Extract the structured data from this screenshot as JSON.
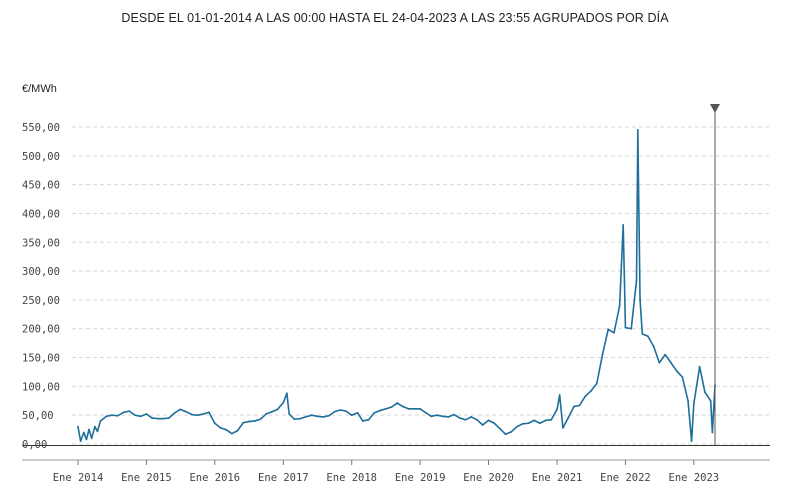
{
  "title": "DESDE EL 01-01-2014 A LAS 00:00 HASTA EL 24-04-2023 A LAS 23:55 AGRUPADOS POR DÍA",
  "unit_label": "€/MWh",
  "colors": {
    "line": "#1f6e9c",
    "marker": "#555555",
    "grid": "#d9d9d9"
  },
  "chart_data": {
    "type": "line",
    "title": "DESDE EL 01-01-2014 A LAS 00:00 HASTA EL 24-04-2023 A LAS 23:55 AGRUPADOS POR DÍA",
    "ylabel": "€/MWh",
    "xlabel": "",
    "ylim": [
      0,
      550
    ],
    "xlim": [
      "2014-01-01",
      "2023-04-24"
    ],
    "grid": true,
    "y_ticks": [
      "0,00",
      "50,00",
      "100,00",
      "150,00",
      "200,00",
      "250,00",
      "300,00",
      "350,00",
      "400,00",
      "450,00",
      "500,00",
      "550,00"
    ],
    "x_ticks": [
      {
        "date": "2014-01-01",
        "label": "Ene 2014"
      },
      {
        "date": "2015-01-01",
        "label": "Ene 2015"
      },
      {
        "date": "2016-01-01",
        "label": "Ene 2016"
      },
      {
        "date": "2017-01-01",
        "label": "Ene 2017"
      },
      {
        "date": "2018-01-01",
        "label": "Ene 2018"
      },
      {
        "date": "2019-01-01",
        "label": "Ene 2019"
      },
      {
        "date": "2020-01-01",
        "label": "Ene 2020"
      },
      {
        "date": "2021-01-01",
        "label": "Ene 2021"
      },
      {
        "date": "2022-01-01",
        "label": "Ene 2022"
      },
      {
        "date": "2023-01-01",
        "label": "Ene 2023"
      }
    ],
    "series": [
      {
        "points": [
          [
            "2014-01-01",
            30
          ],
          [
            "2014-01-15",
            5
          ],
          [
            "2014-02-01",
            20
          ],
          [
            "2014-02-15",
            8
          ],
          [
            "2014-03-01",
            25
          ],
          [
            "2014-03-15",
            10
          ],
          [
            "2014-04-01",
            30
          ],
          [
            "2014-04-15",
            22
          ],
          [
            "2014-05-01",
            40
          ],
          [
            "2014-06-01",
            48
          ],
          [
            "2014-07-01",
            50
          ],
          [
            "2014-08-01",
            49
          ],
          [
            "2014-09-01",
            55
          ],
          [
            "2014-10-01",
            57
          ],
          [
            "2014-11-01",
            50
          ],
          [
            "2014-12-01",
            48
          ],
          [
            "2015-01-01",
            52
          ],
          [
            "2015-02-01",
            45
          ],
          [
            "2015-03-01",
            44
          ],
          [
            "2015-04-01",
            44
          ],
          [
            "2015-05-01",
            45
          ],
          [
            "2015-06-01",
            54
          ],
          [
            "2015-07-01",
            60
          ],
          [
            "2015-08-01",
            56
          ],
          [
            "2015-09-01",
            51
          ],
          [
            "2015-10-01",
            50
          ],
          [
            "2015-11-01",
            52
          ],
          [
            "2015-12-01",
            55
          ],
          [
            "2016-01-01",
            36
          ],
          [
            "2016-02-01",
            28
          ],
          [
            "2016-03-01",
            25
          ],
          [
            "2016-04-01",
            18
          ],
          [
            "2016-05-01",
            23
          ],
          [
            "2016-06-01",
            37
          ],
          [
            "2016-07-01",
            39
          ],
          [
            "2016-08-01",
            40
          ],
          [
            "2016-09-01",
            43
          ],
          [
            "2016-10-01",
            52
          ],
          [
            "2016-11-01",
            56
          ],
          [
            "2016-12-01",
            60
          ],
          [
            "2017-01-01",
            72
          ],
          [
            "2017-01-20",
            88
          ],
          [
            "2017-02-01",
            52
          ],
          [
            "2017-03-01",
            43
          ],
          [
            "2017-04-01",
            44
          ],
          [
            "2017-05-01",
            47
          ],
          [
            "2017-06-01",
            50
          ],
          [
            "2017-07-01",
            48
          ],
          [
            "2017-08-01",
            47
          ],
          [
            "2017-09-01",
            49
          ],
          [
            "2017-10-01",
            56
          ],
          [
            "2017-11-01",
            59
          ],
          [
            "2017-12-01",
            57
          ],
          [
            "2018-01-01",
            50
          ],
          [
            "2018-02-01",
            54
          ],
          [
            "2018-03-01",
            40
          ],
          [
            "2018-04-01",
            42
          ],
          [
            "2018-05-01",
            54
          ],
          [
            "2018-06-01",
            58
          ],
          [
            "2018-07-01",
            61
          ],
          [
            "2018-08-01",
            64
          ],
          [
            "2018-09-01",
            71
          ],
          [
            "2018-10-01",
            65
          ],
          [
            "2018-11-01",
            61
          ],
          [
            "2018-12-01",
            61
          ],
          [
            "2019-01-01",
            61
          ],
          [
            "2019-02-01",
            54
          ],
          [
            "2019-03-01",
            48
          ],
          [
            "2019-04-01",
            50
          ],
          [
            "2019-05-01",
            48
          ],
          [
            "2019-06-01",
            47
          ],
          [
            "2019-07-01",
            51
          ],
          [
            "2019-08-01",
            45
          ],
          [
            "2019-09-01",
            42
          ],
          [
            "2019-10-01",
            47
          ],
          [
            "2019-11-01",
            42
          ],
          [
            "2019-12-01",
            33
          ],
          [
            "2020-01-01",
            41
          ],
          [
            "2020-02-01",
            36
          ],
          [
            "2020-03-01",
            27
          ],
          [
            "2020-04-01",
            17
          ],
          [
            "2020-05-01",
            21
          ],
          [
            "2020-06-01",
            30
          ],
          [
            "2020-07-01",
            35
          ],
          [
            "2020-08-01",
            36
          ],
          [
            "2020-09-01",
            41
          ],
          [
            "2020-10-01",
            36
          ],
          [
            "2020-11-01",
            41
          ],
          [
            "2020-12-01",
            42
          ],
          [
            "2021-01-01",
            60
          ],
          [
            "2021-01-15",
            85
          ],
          [
            "2021-02-01",
            28
          ],
          [
            "2021-03-01",
            45
          ],
          [
            "2021-04-01",
            65
          ],
          [
            "2021-05-01",
            67
          ],
          [
            "2021-06-01",
            83
          ],
          [
            "2021-07-01",
            92
          ],
          [
            "2021-08-01",
            105
          ],
          [
            "2021-09-01",
            156
          ],
          [
            "2021-10-01",
            199
          ],
          [
            "2021-11-01",
            193
          ],
          [
            "2021-12-01",
            240
          ],
          [
            "2021-12-20",
            380
          ],
          [
            "2022-01-01",
            202
          ],
          [
            "2022-02-01",
            200
          ],
          [
            "2022-03-01",
            283
          ],
          [
            "2022-03-08",
            545
          ],
          [
            "2022-03-20",
            250
          ],
          [
            "2022-04-01",
            191
          ],
          [
            "2022-05-01",
            187
          ],
          [
            "2022-06-01",
            169
          ],
          [
            "2022-07-01",
            141
          ],
          [
            "2022-08-01",
            155
          ],
          [
            "2022-09-01",
            141
          ],
          [
            "2022-10-01",
            127
          ],
          [
            "2022-11-01",
            116
          ],
          [
            "2022-12-01",
            75
          ],
          [
            "2022-12-20",
            5
          ],
          [
            "2023-01-01",
            70
          ],
          [
            "2023-02-01",
            134
          ],
          [
            "2023-03-01",
            90
          ],
          [
            "2023-04-01",
            75
          ],
          [
            "2023-04-10",
            20
          ],
          [
            "2023-04-24",
            102
          ]
        ]
      }
    ],
    "annotations": [
      {
        "type": "vertical-marker",
        "date": "2023-04-24"
      }
    ]
  }
}
